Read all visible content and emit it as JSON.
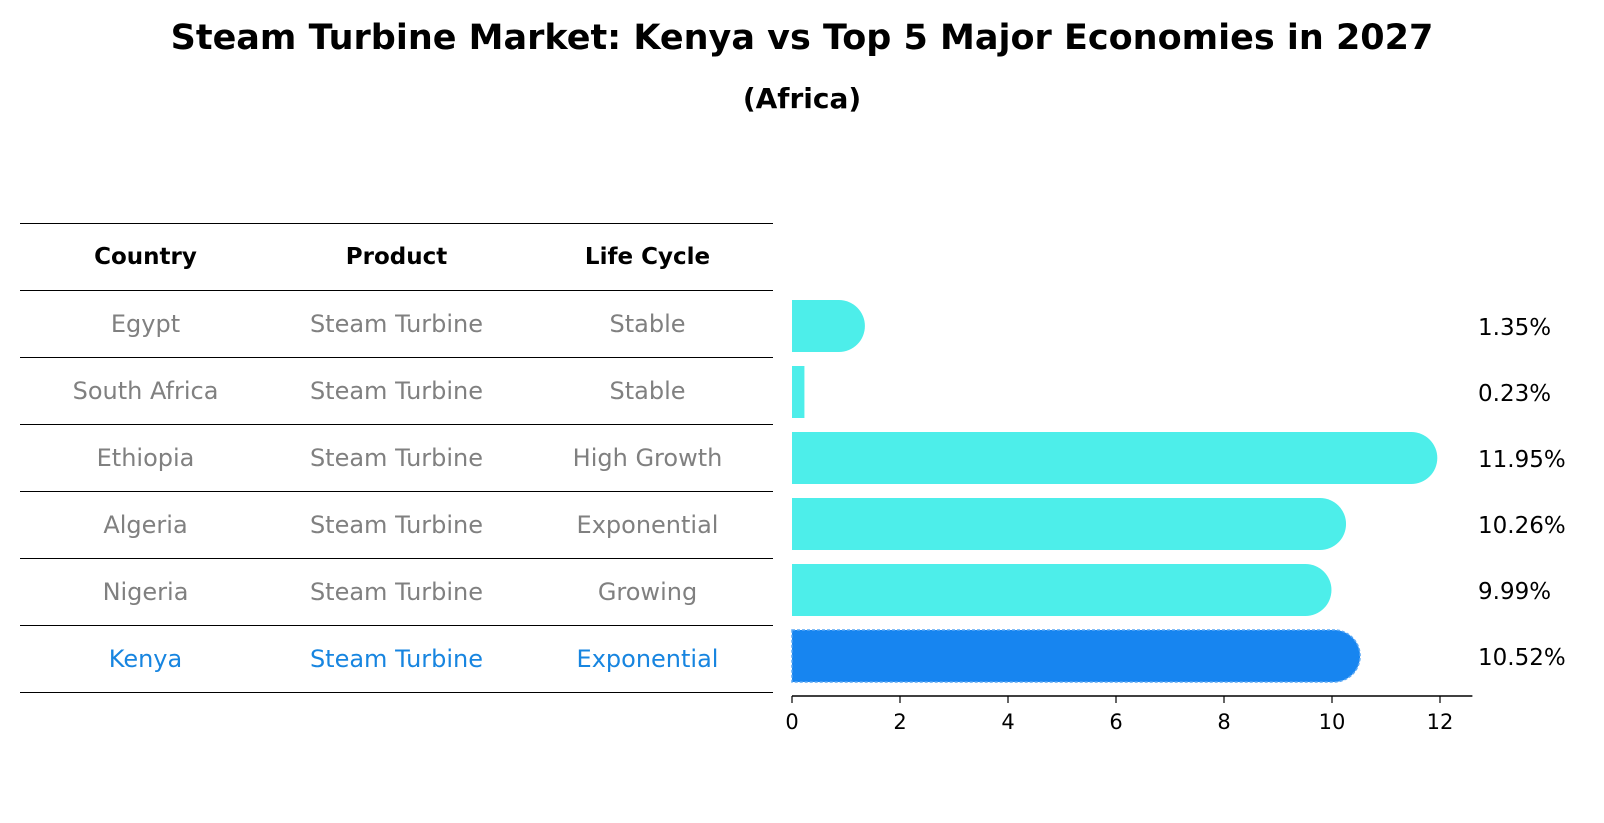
{
  "title": "Steam Turbine Market: Kenya vs Top 5 Major Economies in 2027",
  "subtitle": "(Africa)",
  "table": {
    "headers": [
      "Country",
      "Product",
      "Life Cycle"
    ],
    "rows": [
      [
        "Egypt",
        "Steam Turbine",
        "Stable"
      ],
      [
        "South Africa",
        "Steam Turbine",
        "Stable"
      ],
      [
        "Ethiopia",
        "Steam Turbine",
        "High Growth"
      ],
      [
        "Algeria",
        "Steam Turbine",
        "Exponential"
      ],
      [
        "Nigeria",
        "Steam Turbine",
        "Growing"
      ],
      [
        "Kenya",
        "Steam Turbine",
        "Exponential"
      ]
    ],
    "highlight_row": 5
  },
  "colors": {
    "bar": "#4deeea",
    "highlight": "#1785f0",
    "highlight_text": "#1785e0",
    "muted_text": "#808080"
  },
  "chart_data": {
    "type": "bar",
    "orientation": "horizontal",
    "title": "Steam Turbine Market: Kenya vs Top 5 Major Economies in 2027",
    "subtitle": "(Africa)",
    "categories": [
      "Egypt",
      "South Africa",
      "Ethiopia",
      "Algeria",
      "Nigeria",
      "Kenya"
    ],
    "values": [
      1.35,
      0.23,
      11.95,
      10.26,
      9.99,
      10.52
    ],
    "value_labels": [
      "1.35%",
      "0.23%",
      "11.95%",
      "10.26%",
      "9.99%",
      "10.52%"
    ],
    "highlight": "Kenya",
    "xlim": [
      0,
      12.6
    ],
    "xticks": [
      0,
      2,
      4,
      6,
      8,
      10,
      12
    ],
    "xlabel": "",
    "ylabel": "",
    "grid": false
  }
}
